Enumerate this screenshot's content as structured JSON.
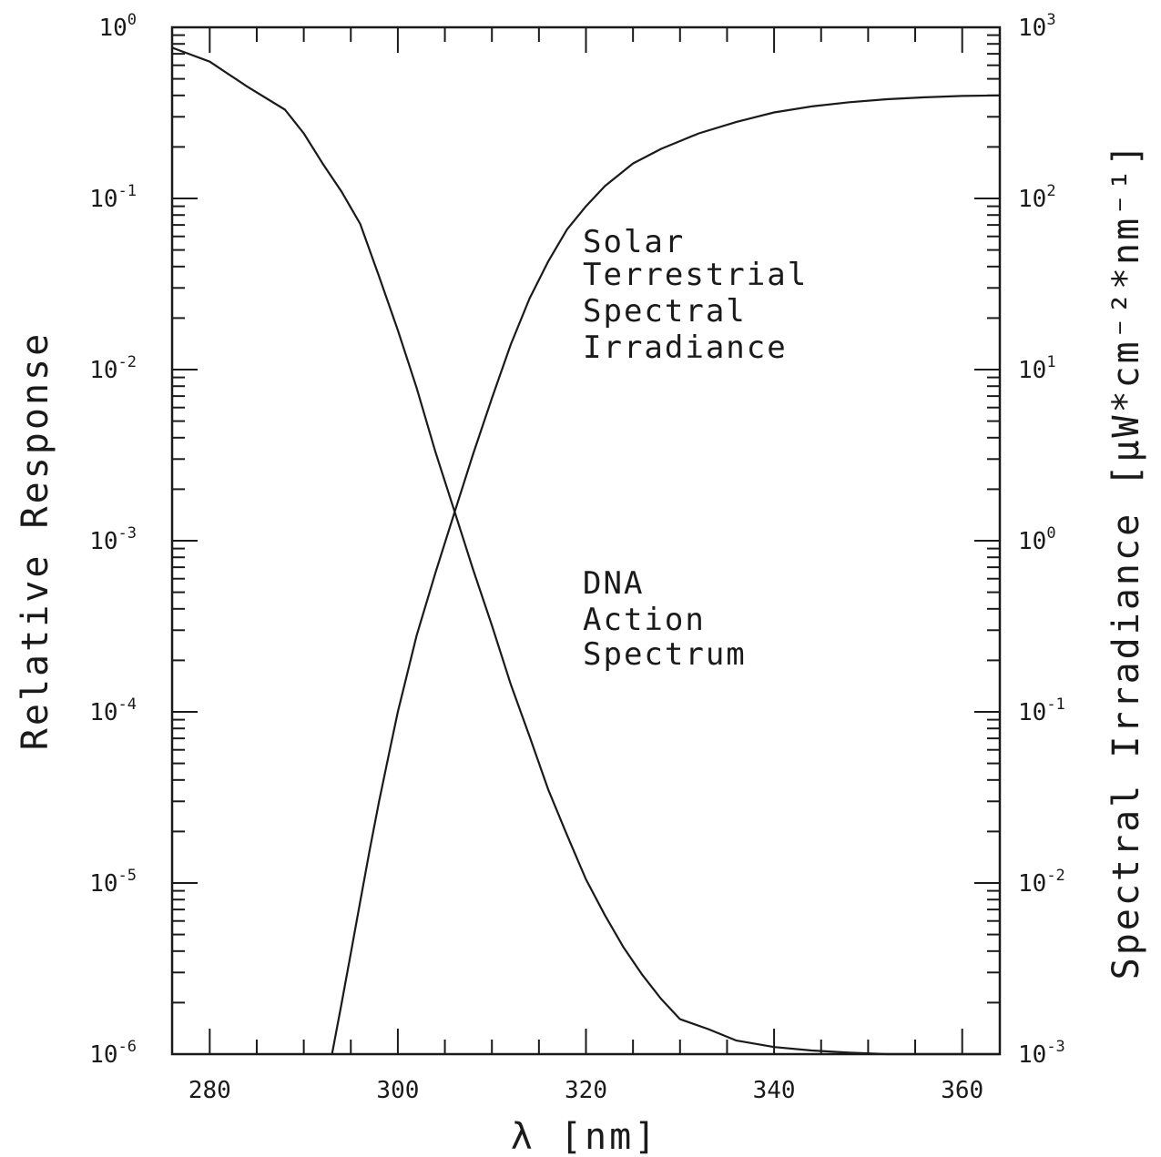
{
  "chart_data": {
    "type": "line",
    "title": "",
    "xlabel": "λ [nm]",
    "ylabel_left": "Relative Response",
    "ylabel_right": "Spectral Irradiance [μW*cm⁻²*nm⁻¹]",
    "xlim": [
      276,
      364
    ],
    "ylim_left": [
      1e-06,
      1
    ],
    "ylim_right": [
      0.001,
      1000
    ],
    "yscale": "log",
    "grid": false,
    "x_ticks": [
      "280",
      "300",
      "320",
      "340",
      "360"
    ],
    "y_left_ticks": [
      {
        "base": "10",
        "exp": "0"
      },
      {
        "base": "10",
        "exp": "-1"
      },
      {
        "base": "10",
        "exp": "-2"
      },
      {
        "base": "10",
        "exp": "-3"
      },
      {
        "base": "10",
        "exp": "-4"
      },
      {
        "base": "10",
        "exp": "-5"
      },
      {
        "base": "10",
        "exp": "-6"
      }
    ],
    "y_right_ticks": [
      {
        "base": "10",
        "exp": "3"
      },
      {
        "base": "10",
        "exp": "2"
      },
      {
        "base": "10",
        "exp": "1"
      },
      {
        "base": "10",
        "exp": "0"
      },
      {
        "base": "10",
        "exp": "-1"
      },
      {
        "base": "10",
        "exp": "-2"
      },
      {
        "base": "10",
        "exp": "-3"
      }
    ],
    "series": [
      {
        "name": "DNA Action Spectrum",
        "axis": "left",
        "x": [
          276,
          280,
          284,
          288,
          290,
          292,
          294,
          296,
          298,
          300,
          302,
          304,
          306,
          308,
          310,
          312,
          314,
          316,
          318,
          320,
          322,
          324,
          326,
          328,
          330,
          333,
          336,
          340,
          344,
          348,
          352,
          356,
          360,
          364
        ],
        "y": [
          0.76,
          0.63,
          0.45,
          0.33,
          0.24,
          0.16,
          0.11,
          0.071,
          0.035,
          0.017,
          0.0078,
          0.0033,
          0.0015,
          0.00068,
          0.00032,
          0.000145,
          7.2e-05,
          3.5e-05,
          1.9e-05,
          1.05e-05,
          6.5e-06,
          4.2e-06,
          2.9e-06,
          2.1e-06,
          1.6e-06,
          1.4e-06,
          1.2e-06,
          1.1e-06,
          1.05e-06,
          1.02e-06,
          1e-06,
          9.9e-07,
          9.9e-07,
          9.9e-07
        ]
      },
      {
        "name": "Solar Terrestrial Spectral Irradiance",
        "axis": "right",
        "x": [
          293,
          294,
          295,
          296,
          297,
          298,
          299,
          300,
          302,
          304,
          306,
          308,
          310,
          312,
          314,
          316,
          318,
          320,
          322,
          325,
          328,
          332,
          336,
          340,
          344,
          348,
          352,
          356,
          360,
          364
        ],
        "y": [
          0.001,
          0.00195,
          0.0039,
          0.0078,
          0.0155,
          0.03,
          0.055,
          0.1,
          0.28,
          0.65,
          1.45,
          3.2,
          6.8,
          14,
          26,
          43,
          66,
          90,
          118,
          160,
          195,
          240,
          280,
          318,
          345,
          365,
          380,
          390,
          397,
          400
        ]
      }
    ],
    "annotations": [
      {
        "lines": [
          "Solar",
          "Terrestrial",
          "Spectral",
          "Irradiance"
        ]
      },
      {
        "lines": [
          "DNA",
          "Action",
          "Spectrum"
        ]
      }
    ]
  }
}
